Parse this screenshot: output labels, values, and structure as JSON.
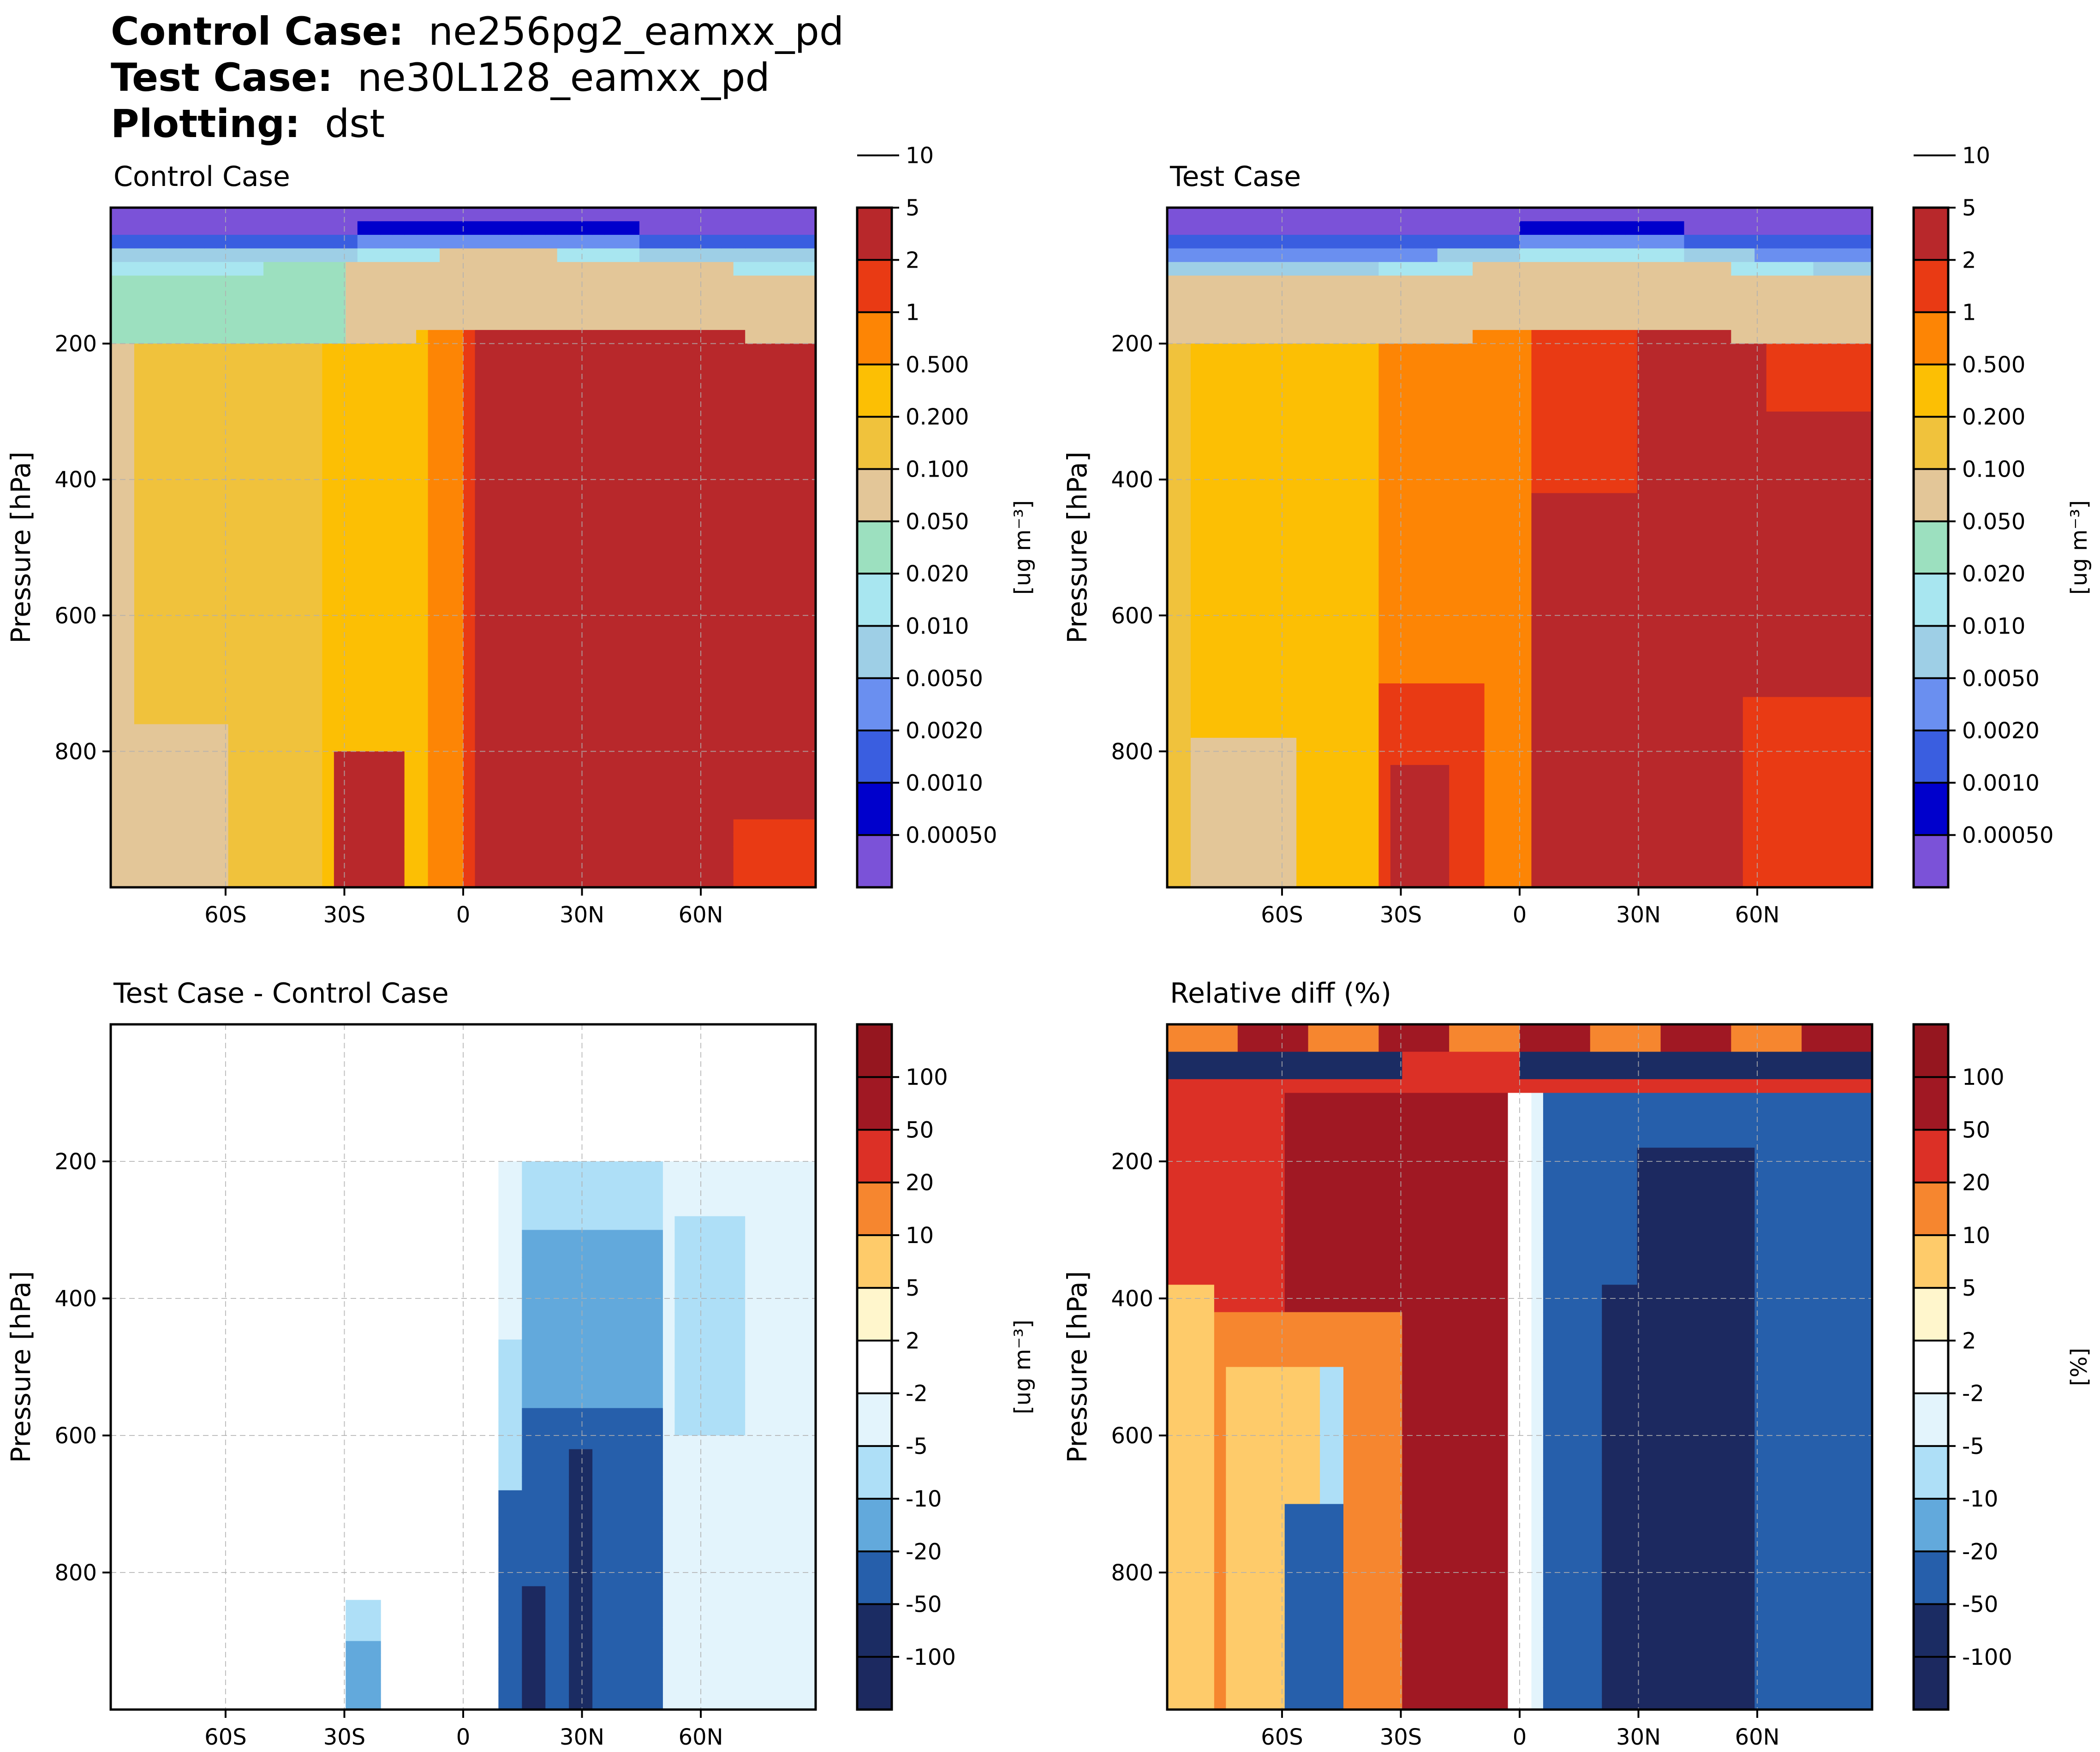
{
  "header": {
    "control_label": "Control Case",
    "control_value": "ne256pg2_eamxx_pd",
    "test_label": "Test Case",
    "test_value": "ne30L128_eamxx_pd",
    "plotting_label": "Plotting",
    "plotting_value": "dst",
    "separator": ":"
  },
  "chart_data": [
    {
      "type": "contourf",
      "title": "Control Case",
      "variable": "dst",
      "xlabel": "",
      "ylabel": "Pressure [hPa]",
      "xticks": [
        "60S",
        "30S",
        "0",
        "30N",
        "60N"
      ],
      "xtick_values": [
        -60,
        -30,
        0,
        30,
        60
      ],
      "xlim": [
        -89,
        89
      ],
      "yticks": [
        200,
        400,
        600,
        800
      ],
      "ylim": [
        1000,
        0
      ],
      "grid": true,
      "colorbar": {
        "label": "[ug m⁻³]",
        "levels": [
          "0.00050",
          "0.0010",
          "0.0020",
          "0.0050",
          "0.010",
          "0.020",
          "0.050",
          "0.100",
          "0.200",
          "0.500",
          "1",
          "2",
          "5",
          "10"
        ],
        "colors": [
          "#7b52d8",
          "#0000cc",
          "#3a5ee0",
          "#6a8ff0",
          "#9ecfe6",
          "#a8e6f0",
          "#9ce0bf",
          "#e3c698",
          "#f0c23c",
          "#fcbf04",
          "#fd8505",
          "#e93a14",
          "#b8282b"
        ]
      },
      "description_regions": {
        "upper_levels_above_200hPa": "0.0005-0.05",
        "southern_hemisphere_troposphere": "0.2-1",
        "northern_hemisphere_troposphere": "5-10",
        "surface_near_60N_80N": "2-5"
      }
    },
    {
      "type": "contourf",
      "title": "Test Case",
      "variable": "dst",
      "xlabel": "",
      "ylabel": "Pressure [hPa]",
      "xticks": [
        "60S",
        "30S",
        "0",
        "30N",
        "60N"
      ],
      "xtick_values": [
        -60,
        -30,
        0,
        30,
        60
      ],
      "xlim": [
        -89,
        89
      ],
      "yticks": [
        200,
        400,
        600,
        800
      ],
      "ylim": [
        1000,
        0
      ],
      "grid": true,
      "colorbar": {
        "label": "[ug m⁻³]",
        "levels": [
          "0.00050",
          "0.0010",
          "0.0020",
          "0.0050",
          "0.010",
          "0.020",
          "0.050",
          "0.100",
          "0.200",
          "0.500",
          "1",
          "2",
          "5",
          "10"
        ],
        "colors": [
          "#7b52d8",
          "#0000cc",
          "#3a5ee0",
          "#6a8ff0",
          "#9ecfe6",
          "#a8e6f0",
          "#9ce0bf",
          "#e3c698",
          "#f0c23c",
          "#fcbf04",
          "#fd8505",
          "#e93a14",
          "#b8282b"
        ]
      },
      "description_regions": {
        "upper_levels_above_200hPa": "0.0005-0.1",
        "southern_hemisphere_troposphere": "0.2-1",
        "northern_hemisphere_troposphere": "2-10",
        "surface_north_of_60N": "2-5"
      }
    },
    {
      "type": "contourf",
      "title": "Test Case - Control Case",
      "variable": "dst",
      "xlabel": "",
      "ylabel": "Pressure [hPa]",
      "xticks": [
        "60S",
        "30S",
        "0",
        "30N",
        "60N"
      ],
      "xtick_values": [
        -60,
        -30,
        0,
        30,
        60
      ],
      "xlim": [
        -89,
        89
      ],
      "yticks": [
        200,
        400,
        600,
        800
      ],
      "ylim": [
        1000,
        0
      ],
      "grid": true,
      "colorbar": {
        "label": "[ug m⁻³]",
        "levels": [
          "-100",
          "-50",
          "-20",
          "-10",
          "-5",
          "-2",
          "2",
          "5",
          "10",
          "20",
          "50",
          "100"
        ],
        "colors": [
          "#1c2960",
          "#1b2c63",
          "#265fab",
          "#62a9dc",
          "#aedff7",
          "#e3f4fc",
          "#ffffff",
          "#fff6cc",
          "#fecb6a",
          "#f6862f",
          "#dc3026",
          "#a01823",
          "#95161f"
        ]
      },
      "description_regions": {
        "southern_hemisphere": "-2 to 2",
        "northern_hemisphere_troposphere": "-50 to -2",
        "minimum_near_15N_surface": "-100"
      }
    },
    {
      "type": "contourf",
      "title": "Relative diff (%)",
      "variable": "dst",
      "xlabel": "",
      "ylabel": "Pressure [hPa]",
      "xticks": [
        "60S",
        "30S",
        "0",
        "30N",
        "60N"
      ],
      "xtick_values": [
        -60,
        -30,
        0,
        30,
        60
      ],
      "xlim": [
        -89,
        89
      ],
      "yticks": [
        200,
        400,
        600,
        800
      ],
      "ylim": [
        1000,
        0
      ],
      "grid": true,
      "colorbar": {
        "label": "[%]",
        "levels": [
          "-100",
          "-50",
          "-20",
          "-10",
          "-5",
          "-2",
          "2",
          "5",
          "10",
          "20",
          "50",
          "100"
        ],
        "colors": [
          "#1c2960",
          "#1b2c63",
          "#265fab",
          "#62a9dc",
          "#aedff7",
          "#e3f4fc",
          "#ffffff",
          "#fff6cc",
          "#fecb6a",
          "#f6862f",
          "#dc3026",
          "#a01823",
          "#95161f"
        ]
      },
      "description_regions": {
        "southern_hemisphere_troposphere": "20 to 100",
        "southern_lower_troposphere_near_50S": "-50 to 10",
        "northern_hemisphere_troposphere": "-100 to -20",
        "top_levels": "alternating -100 to 100"
      }
    }
  ]
}
